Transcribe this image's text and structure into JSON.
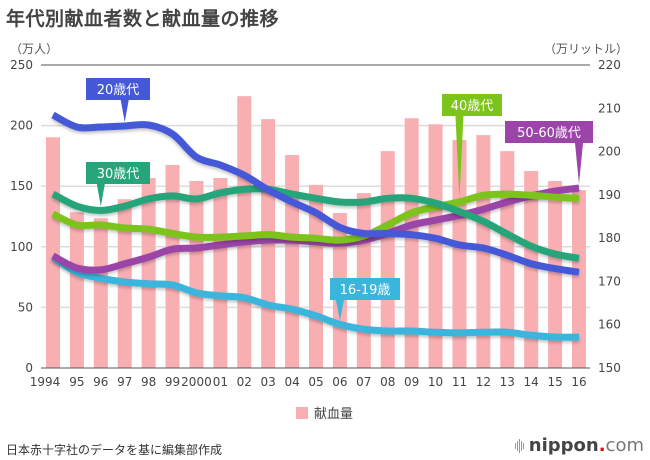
{
  "header": {
    "title": "年代別献血者数と献血量の推移",
    "left_unit": "（万人）",
    "right_unit": "（万リットル）"
  },
  "legend": {
    "bar_label": "献血量"
  },
  "footer": {
    "source": "日本赤十字社のデータを基に編集部作成",
    "brand_main": "nippon",
    "brand_dot": ".",
    "brand_suffix": "com"
  },
  "chart_data": {
    "type": "bar+line",
    "title": "年代別献血者数と献血量の推移",
    "categories": [
      "1994",
      "95",
      "96",
      "97",
      "98",
      "99",
      "2000",
      "01",
      "02",
      "03",
      "04",
      "05",
      "06",
      "07",
      "08",
      "09",
      "10",
      "11",
      "12",
      "13",
      "14",
      "15",
      "16"
    ],
    "y_left": {
      "label": "（万人）",
      "range": [
        0,
        250
      ],
      "ticks": [
        0,
        50,
        100,
        150,
        200,
        250
      ]
    },
    "y_right": {
      "label": "（万リットル）",
      "range": [
        150,
        220
      ],
      "ticks": [
        150,
        160,
        170,
        180,
        190,
        200,
        210,
        220
      ]
    },
    "grid": true,
    "legend_position": "bottom",
    "bars": {
      "name": "献血量",
      "axis": "right",
      "color": "#f9aeb2",
      "values": [
        203.3,
        186.0,
        184.6,
        189.0,
        193.9,
        196.9,
        193.2,
        193.9,
        212.8,
        207.5,
        199.2,
        192.3,
        185.8,
        190.4,
        200.1,
        207.7,
        206.3,
        202.7,
        203.8,
        200.1,
        195.5,
        193.2,
        191.1
      ]
    },
    "series": [
      {
        "name": "20歳代",
        "axis": "left",
        "color": "#4458d8",
        "label_at": 3,
        "values": [
          208.7,
          198.8,
          198.8,
          199.7,
          200.5,
          193,
          174,
          167.5,
          159,
          147,
          137,
          128,
          116,
          111,
          111,
          110,
          107,
          101.5,
          99,
          93,
          86,
          82,
          79
        ]
      },
      {
        "name": "30歳代",
        "axis": "left",
        "color": "#26a57a",
        "label_at": 2,
        "values": [
          143.5,
          133.5,
          130,
          133.5,
          139.5,
          142,
          139.5,
          144.5,
          147.5,
          147.5,
          143.5,
          140,
          137,
          137,
          140,
          140,
          136,
          129,
          121,
          110.5,
          100.5,
          94,
          90.5
        ]
      },
      {
        "name": "40歳代",
        "axis": "left",
        "color": "#7cc31a",
        "label_at": 17,
        "values": [
          127,
          118,
          118,
          115.5,
          114.5,
          111,
          108,
          108,
          109,
          110,
          108,
          107,
          105.5,
          109,
          118,
          128,
          133,
          137,
          142.5,
          143.5,
          142.5,
          141,
          140
        ]
      },
      {
        "name": "50-60歳代",
        "axis": "left",
        "color": "#9b45a8",
        "label_at": 22,
        "values": [
          92.5,
          82.5,
          81,
          86,
          91.5,
          98,
          99,
          101.5,
          104,
          105.5,
          105.5,
          104,
          103,
          105.5,
          111,
          118,
          122,
          126,
          131,
          137,
          142,
          146,
          148.5
        ]
      },
      {
        "name": "16-19歳",
        "axis": "left",
        "color": "#3ab5dc",
        "label_at": 12,
        "values": [
          91.5,
          79,
          74,
          71,
          69.5,
          68.5,
          62,
          59.5,
          58,
          52,
          48.5,
          43,
          36,
          32,
          30.5,
          30.5,
          29.5,
          29,
          29.5,
          29.5,
          27,
          25.5,
          25.5
        ]
      }
    ],
    "annotations": [
      "20歳代",
      "30歳代",
      "40歳代",
      "50-60歳代",
      "16-19歳"
    ]
  }
}
